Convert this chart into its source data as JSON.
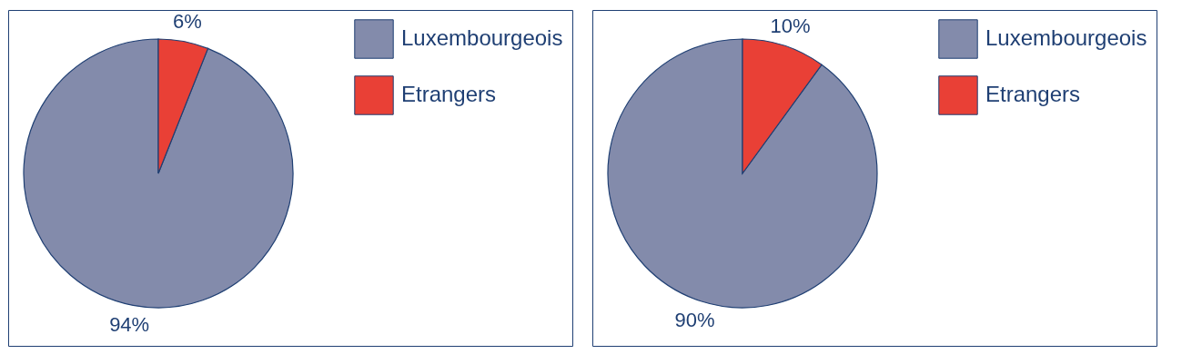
{
  "chart_data": [
    {
      "type": "pie",
      "categories": [
        "Luxembourgeois",
        "Etrangers"
      ],
      "values": [
        94,
        6
      ],
      "colors": [
        "#838bab",
        "#e94036"
      ],
      "value_labels": [
        "94%",
        "6%"
      ],
      "legend": "top right"
    },
    {
      "type": "pie",
      "categories": [
        "Luxembourgeois",
        "Etrangers"
      ],
      "values": [
        90,
        10
      ],
      "colors": [
        "#838bab",
        "#e94036"
      ],
      "value_labels": [
        "90%",
        "10%"
      ],
      "legend": "top right"
    }
  ]
}
